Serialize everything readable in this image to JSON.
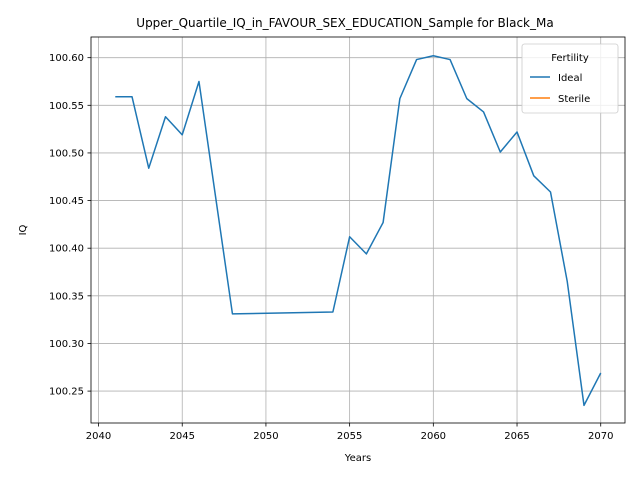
{
  "chart_data": {
    "type": "line",
    "title": "Upper_Quartile_IQ_in_FAVOUR_SEX_EDUCATION_Sample for Black_Ma",
    "xlabel": "Years",
    "ylabel": "IQ",
    "xlim": [
      2039.55,
      2071.45
    ],
    "ylim": [
      100.2165,
      100.6217
    ],
    "xticks": [
      2040,
      2045,
      2050,
      2055,
      2060,
      2065,
      2070
    ],
    "yticks": [
      100.25,
      100.3,
      100.35,
      100.4,
      100.45,
      100.5,
      100.55,
      100.6
    ],
    "ytick_decimals": 2,
    "grid": true,
    "legend": {
      "title": "Fertility",
      "placement": "top-right"
    },
    "series": [
      {
        "name": "Ideal",
        "color": "#1f77b4",
        "x": [
          2041,
          2042,
          2043,
          2044,
          2045,
          2046,
          2048,
          2054,
          2055,
          2056,
          2057,
          2058,
          2059,
          2060,
          2061,
          2062,
          2063,
          2064,
          2065,
          2066,
          2067,
          2068,
          2069,
          2070
        ],
        "y": [
          100.559,
          100.559,
          100.484,
          100.538,
          100.519,
          100.575,
          100.331,
          100.333,
          100.412,
          100.394,
          100.427,
          100.557,
          100.598,
          100.602,
          100.598,
          100.557,
          100.543,
          100.501,
          100.522,
          100.476,
          100.459,
          100.365,
          100.235,
          100.269
        ]
      },
      {
        "name": "Sterile",
        "color": "#ff7f0e",
        "x": [],
        "y": []
      }
    ]
  }
}
